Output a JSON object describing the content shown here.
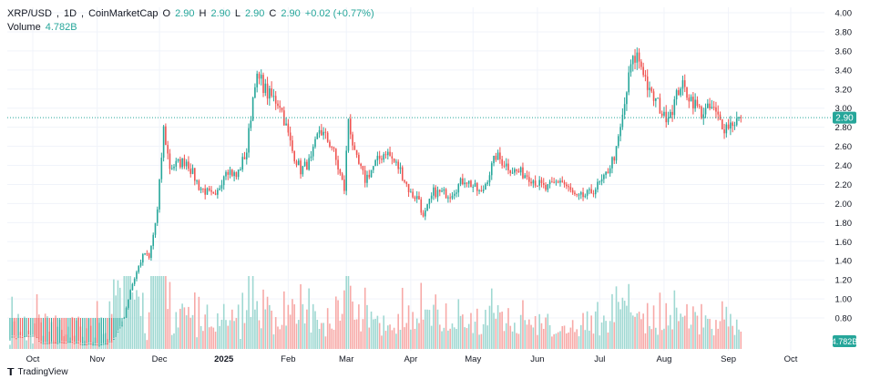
{
  "legend": {
    "symbol": "XRP/USD",
    "interval": "1D",
    "source": "CoinMarketCap",
    "o_label": "O",
    "o_value": "2.90",
    "h_label": "H",
    "h_value": "2.90",
    "l_label": "L",
    "l_value": "2.90",
    "c_label": "C",
    "c_value": "2.90",
    "change": "+0.02 (+0.77%)",
    "volume_label": "Volume",
    "volume_value": "4.782B"
  },
  "price_badge": "2.90",
  "volume_badge": "4.782B",
  "watermark": "TradingView",
  "colors": {
    "up": "#26a69a",
    "down": "#ef5350",
    "up_vol": "#9fd8d2",
    "down_vol": "#f7a9a7",
    "grid": "#f0f3fa"
  },
  "chart_data": {
    "type": "candlestick",
    "price_axis": {
      "ticks": [
        0.8,
        1.0,
        1.2,
        1.4,
        1.6,
        1.8,
        2.0,
        2.2,
        2.4,
        2.6,
        2.8,
        3.0,
        3.2,
        3.4,
        3.6,
        3.8,
        4.0
      ],
      "tick_labels": [
        "0.80",
        "1.00",
        "1.20",
        "1.40",
        "1.60",
        "1.80",
        "2.00",
        "2.20",
        "2.40",
        "2.60",
        "2.80",
        "3.00",
        "3.20",
        "3.40",
        "3.60",
        "3.80",
        "4.00"
      ]
    },
    "time_axis": {
      "labels": [
        "Oct",
        "Nov",
        "Dec",
        "2025",
        "Feb",
        "Mar",
        "Apr",
        "May",
        "Jun",
        "Jul",
        "Aug",
        "Sep",
        "Oct"
      ],
      "days": [
        "2024-10-01",
        "2024-11-01",
        "2024-12-01",
        "2025-01-01",
        "2025-02-01",
        "2025-03-01",
        "2025-04-01",
        "2025-05-01",
        "2025-06-01",
        "2025-07-01",
        "2025-08-01",
        "2025-09-01",
        "2025-10-01"
      ]
    },
    "start_date": "2024-09-20",
    "end_date": "2025-09-07",
    "current_price": 2.9,
    "price_path": [
      [
        "2024-09-20",
        0.59
      ],
      [
        "2024-10-01",
        0.61
      ],
      [
        "2024-10-05",
        0.53
      ],
      [
        "2024-10-20",
        0.54
      ],
      [
        "2024-11-01",
        0.51
      ],
      [
        "2024-11-08",
        0.55
      ],
      [
        "2024-11-13",
        0.72
      ],
      [
        "2024-11-17",
        1.1
      ],
      [
        "2024-11-22",
        1.4
      ],
      [
        "2024-11-24",
        1.48
      ],
      [
        "2024-11-26",
        1.42
      ],
      [
        "2024-11-30",
        1.92
      ],
      [
        "2024-12-03",
        2.78
      ],
      [
        "2024-12-06",
        2.38
      ],
      [
        "2024-12-10",
        2.42
      ],
      [
        "2024-12-14",
        2.45
      ],
      [
        "2024-12-20",
        2.18
      ],
      [
        "2024-12-28",
        2.05
      ],
      [
        "2025-01-02",
        2.38
      ],
      [
        "2025-01-07",
        2.28
      ],
      [
        "2025-01-12",
        2.55
      ],
      [
        "2025-01-16",
        3.3
      ],
      [
        "2025-01-19",
        3.28
      ],
      [
        "2025-01-22",
        3.15
      ],
      [
        "2025-01-28",
        3.05
      ],
      [
        "2025-02-03",
        2.55
      ],
      [
        "2025-02-07",
        2.35
      ],
      [
        "2025-02-12",
        2.45
      ],
      [
        "2025-02-16",
        2.78
      ],
      [
        "2025-02-22",
        2.6
      ],
      [
        "2025-02-28",
        2.15
      ],
      [
        "2025-03-02",
        2.9
      ],
      [
        "2025-03-05",
        2.5
      ],
      [
        "2025-03-10",
        2.25
      ],
      [
        "2025-03-15",
        2.42
      ],
      [
        "2025-03-20",
        2.55
      ],
      [
        "2025-03-27",
        2.35
      ],
      [
        "2025-04-01",
        2.1
      ],
      [
        "2025-04-05",
        2.05
      ],
      [
        "2025-04-07",
        1.84
      ],
      [
        "2025-04-12",
        2.12
      ],
      [
        "2025-04-20",
        2.1
      ],
      [
        "2025-04-27",
        2.26
      ],
      [
        "2025-05-05",
        2.1
      ],
      [
        "2025-05-12",
        2.5
      ],
      [
        "2025-05-20",
        2.35
      ],
      [
        "2025-05-27",
        2.3
      ],
      [
        "2025-06-05",
        2.15
      ],
      [
        "2025-06-12",
        2.25
      ],
      [
        "2025-06-20",
        2.05
      ],
      [
        "2025-06-26",
        2.1
      ],
      [
        "2025-07-03",
        2.25
      ],
      [
        "2025-07-09",
        2.55
      ],
      [
        "2025-07-12",
        2.9
      ],
      [
        "2025-07-16",
        3.45
      ],
      [
        "2025-07-19",
        3.55
      ],
      [
        "2025-07-22",
        3.4
      ],
      [
        "2025-07-25",
        3.15
      ],
      [
        "2025-07-29",
        3.05
      ],
      [
        "2025-08-01",
        2.9
      ],
      [
        "2025-08-05",
        3.0
      ],
      [
        "2025-08-09",
        3.25
      ],
      [
        "2025-08-14",
        3.1
      ],
      [
        "2025-08-19",
        2.95
      ],
      [
        "2025-08-24",
        3.0
      ],
      [
        "2025-08-30",
        2.8
      ],
      [
        "2025-09-03",
        2.85
      ],
      [
        "2025-09-07",
        2.9
      ]
    ],
    "volume_axis_label": "Volume"
  }
}
